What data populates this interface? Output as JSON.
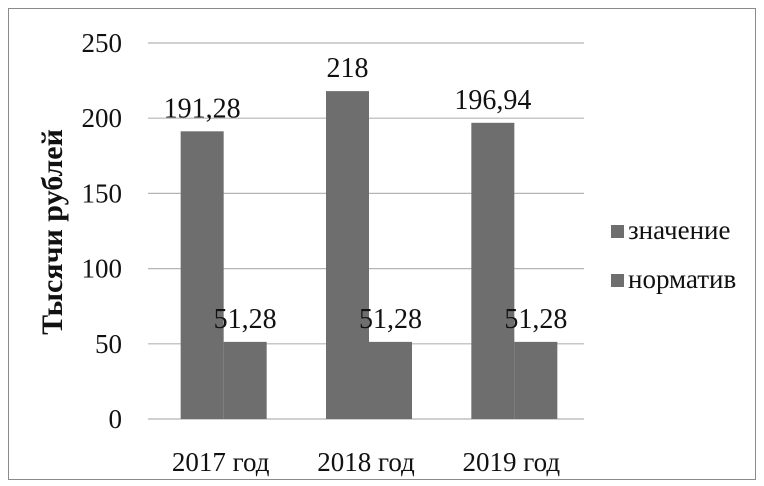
{
  "chart_data": {
    "type": "bar",
    "title": "",
    "xlabel": "",
    "ylabel": "Тысячи рублей",
    "ylim": [
      0,
      250
    ],
    "yticks": [
      0,
      50,
      100,
      150,
      200,
      250
    ],
    "grid": true,
    "legend_position": "right",
    "categories": [
      "2017 год",
      "2018 год",
      "2019 год"
    ],
    "series": [
      {
        "name": "значение",
        "values": [
          191.28,
          218,
          196.94
        ],
        "labels": [
          "191,28",
          "218",
          "196,94"
        ]
      },
      {
        "name": "норматив",
        "values": [
          51.28,
          51.28,
          51.28
        ],
        "labels": [
          "51,28",
          "51,28",
          "51,28"
        ]
      }
    ],
    "colors": {
      "bars": "#6e6e6e",
      "grid": "#b5b5b5",
      "text": "#111111"
    }
  }
}
